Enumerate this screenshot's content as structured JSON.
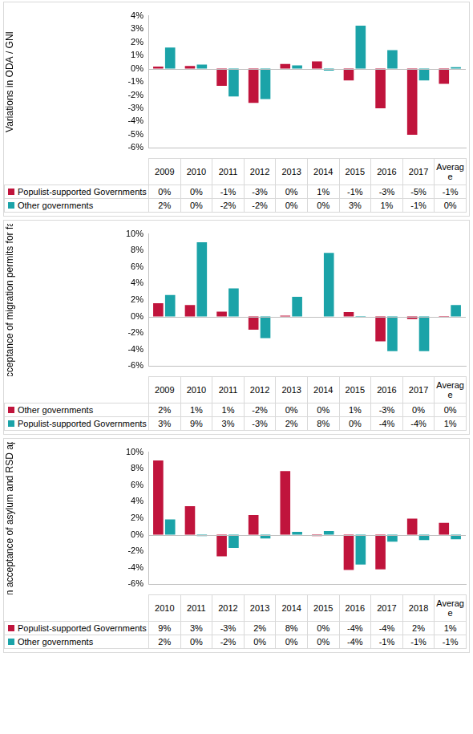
{
  "chart_data": [
    {
      "type": "bar",
      "y_label": "Variations in ODA / GNI",
      "categories": [
        "2009",
        "2010",
        "2011",
        "2012",
        "2013",
        "2014",
        "2015",
        "2016",
        "2017",
        "Average"
      ],
      "series": [
        {
          "name": "Populist-supported Governments",
          "color": "#c0143c",
          "values": [
            0.15,
            0.2,
            -1.3,
            -2.6,
            0.35,
            0.55,
            -0.9,
            -3.0,
            -5.0,
            -1.15
          ],
          "value_labels": [
            "0%",
            "0%",
            "-1%",
            "-3%",
            "0%",
            "1%",
            "-1%",
            "-3%",
            "-5%",
            "-1%"
          ]
        },
        {
          "name": "Other governments",
          "color": "#1ba3a8",
          "values": [
            1.6,
            0.3,
            -2.1,
            -2.3,
            0.25,
            -0.15,
            3.25,
            1.4,
            -0.9,
            0.1
          ],
          "value_labels": [
            "2%",
            "0%",
            "-2%",
            "-2%",
            "0%",
            "0%",
            "3%",
            "1%",
            "-1%",
            "0%"
          ]
        }
      ],
      "ylim": [
        -6,
        4
      ],
      "yticks": [
        {
          "value": -6,
          "label": "-6%"
        },
        {
          "value": -5,
          "label": "-5%"
        },
        {
          "value": -4,
          "label": "-4%"
        },
        {
          "value": -3,
          "label": "-3%"
        },
        {
          "value": -2,
          "label": "-2%"
        },
        {
          "value": -1,
          "label": "-1%"
        },
        {
          "value": 0,
          "label": "0%"
        },
        {
          "value": 1,
          "label": "1%"
        },
        {
          "value": 2,
          "label": "2%"
        },
        {
          "value": 3,
          "label": "3%"
        },
        {
          "value": 4,
          "label": "4%"
        }
      ],
      "grid": false,
      "data_labels": true,
      "tick_labels": "y"
    },
    {
      "type": "bar",
      "y_label": "Variation in acceptance of migration permits for family reasons",
      "categories": [
        "2009",
        "2010",
        "2011",
        "2012",
        "2013",
        "2014",
        "2015",
        "2016",
        "2017",
        "Average"
      ],
      "series": [
        {
          "name": "Other governments",
          "color": "#c0143c",
          "values": [
            1.6,
            1.4,
            0.6,
            -1.6,
            0.1,
            0.0,
            0.55,
            -3.0,
            -0.3,
            -0.05
          ],
          "value_labels": [
            "2%",
            "1%",
            "1%",
            "-2%",
            "0%",
            "0%",
            "1%",
            "-3%",
            "0%",
            "0%"
          ]
        },
        {
          "name": "Populist-supported Governments",
          "color": "#1ba3a8",
          "values": [
            2.6,
            9.0,
            3.4,
            -2.6,
            2.4,
            7.7,
            -0.1,
            -4.2,
            -4.2,
            1.4
          ],
          "value_labels": [
            "3%",
            "9%",
            "3%",
            "-3%",
            "2%",
            "8%",
            "0%",
            "-4%",
            "-4%",
            "1%"
          ]
        }
      ],
      "ylim": [
        -6,
        10
      ],
      "yticks": [
        {
          "value": -6,
          "label": "-6%"
        },
        {
          "value": -4,
          "label": "-4%"
        },
        {
          "value": -2,
          "label": "-2%"
        },
        {
          "value": 0,
          "label": "0%"
        },
        {
          "value": 2,
          "label": "2%"
        },
        {
          "value": 4,
          "label": "4%"
        },
        {
          "value": 6,
          "label": "6%"
        },
        {
          "value": 8,
          "label": "8%"
        },
        {
          "value": 10,
          "label": "10%"
        }
      ],
      "grid": false,
      "data_labels": true,
      "tick_labels": "y"
    },
    {
      "type": "bar",
      "y_label": "Variation in acceptance of asylum and RSD applications",
      "categories": [
        "2010",
        "2011",
        "2012",
        "2013",
        "2014",
        "2015",
        "2016",
        "2017",
        "2018",
        "Average"
      ],
      "series": [
        {
          "name": "Populist-supported Governments",
          "color": "#c0143c",
          "values": [
            9.0,
            3.45,
            -2.6,
            2.4,
            7.7,
            -0.15,
            -4.25,
            -4.2,
            1.95,
            1.45
          ],
          "value_labels": [
            "9%",
            "3%",
            "-3%",
            "2%",
            "8%",
            "0%",
            "-4%",
            "-4%",
            "2%",
            "1%"
          ]
        },
        {
          "name": "Other governments",
          "color": "#1ba3a8",
          "values": [
            1.85,
            -0.15,
            -1.6,
            -0.45,
            0.35,
            0.45,
            -3.6,
            -0.85,
            -0.65,
            -0.55
          ],
          "value_labels": [
            "2%",
            "0%",
            "-2%",
            "0%",
            "0%",
            "0%",
            "-4%",
            "-1%",
            "-1%",
            "-1%"
          ]
        }
      ],
      "ylim": [
        -6,
        10
      ],
      "yticks": [
        {
          "value": -6,
          "label": "-6%"
        },
        {
          "value": -4,
          "label": "-4%"
        },
        {
          "value": -2,
          "label": "-2%"
        },
        {
          "value": 0,
          "label": "0%"
        },
        {
          "value": 2,
          "label": "2%"
        },
        {
          "value": 4,
          "label": "4%"
        },
        {
          "value": 6,
          "label": "6%"
        },
        {
          "value": 8,
          "label": "8%"
        },
        {
          "value": 10,
          "label": "10%"
        }
      ],
      "grid": false,
      "data_labels": true,
      "tick_labels": "y"
    }
  ]
}
